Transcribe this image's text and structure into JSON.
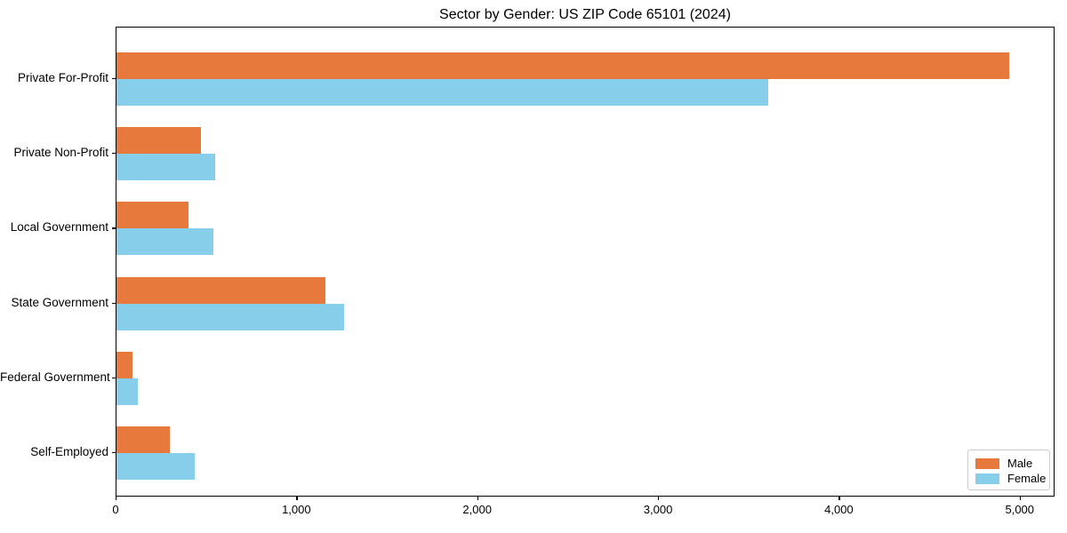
{
  "title": "Sector by Gender: US ZIP Code 65101 (2024)",
  "chart_data": {
    "type": "bar",
    "orientation": "horizontal",
    "title": "Sector by Gender: US ZIP Code 65101 (2024)",
    "xlabel": "",
    "ylabel": "",
    "categories": [
      "Private For-Profit",
      "Private Non-Profit",
      "Local Government",
      "State Government",
      "Federal Government",
      "Self-Employed"
    ],
    "series": [
      {
        "name": "Male",
        "color": "#E8793D",
        "values": [
          4945,
          470,
          400,
          1160,
          90,
          295
        ]
      },
      {
        "name": "Female",
        "color": "#87CEEB",
        "values": [
          3610,
          545,
          535,
          1260,
          120,
          435
        ]
      }
    ],
    "xlim": [
      0,
      5193
    ],
    "xticks": [
      0,
      1000,
      2000,
      3000,
      4000,
      5000
    ],
    "xtick_labels": [
      "0",
      "1,000",
      "2,000",
      "3,000",
      "4,000",
      "5,000"
    ],
    "grid": false,
    "legend_position": "lower right"
  },
  "legend": {
    "items": [
      {
        "label": "Male",
        "color": "#E8793D"
      },
      {
        "label": "Female",
        "color": "#87CEEB"
      }
    ]
  }
}
